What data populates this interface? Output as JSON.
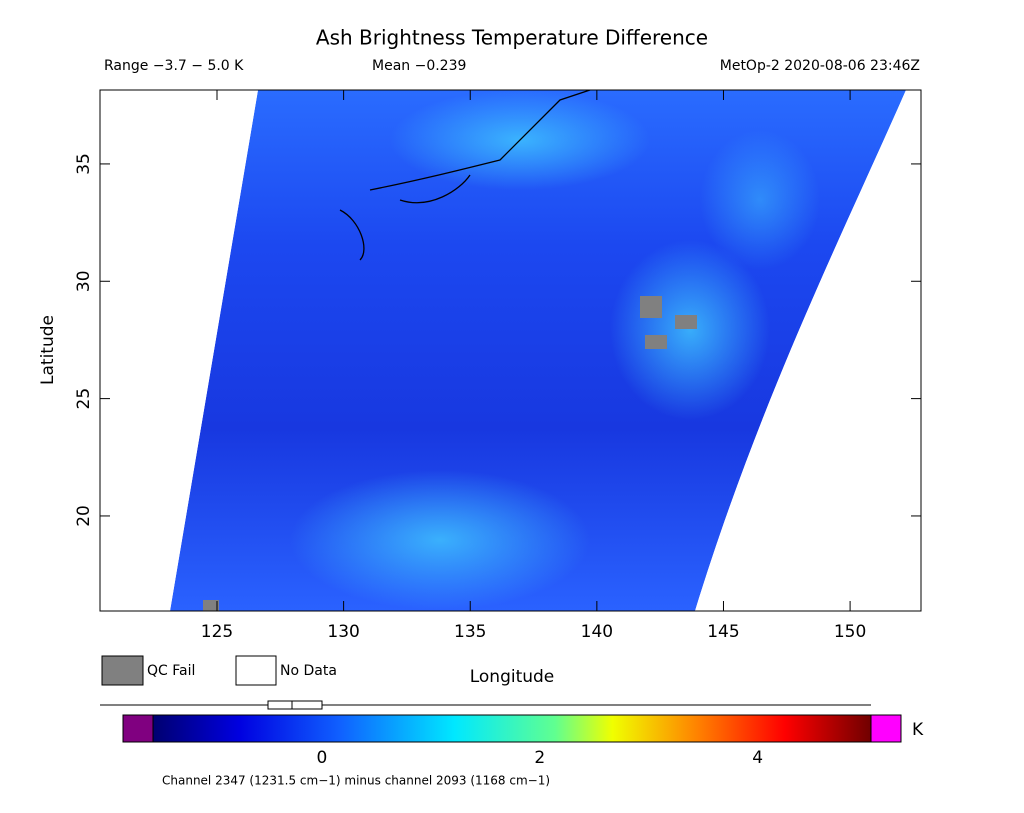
{
  "header": {
    "title": "Ash Brightness Temperature Difference",
    "range": "Range −3.7 − 5.0 K",
    "mean": "Mean −0.239",
    "source": "MetOp-2 2020-08-06 23:46Z"
  },
  "map": {
    "xlabel": "Longitude",
    "ylabel": "Latitude",
    "xlim": [
      120.38,
      152.8
    ],
    "ylim": [
      15.95,
      38.15
    ],
    "xticks": [
      125,
      130,
      135,
      140,
      145,
      150
    ],
    "yticks": [
      20,
      25,
      30,
      35
    ]
  },
  "legend": {
    "items": [
      "QC Fail",
      "No Data"
    ]
  },
  "colorbar": {
    "lim": [
      -1.55,
      5.04
    ],
    "ticks": [
      0,
      2,
      4
    ],
    "unit": "K"
  },
  "footer": "Channel 2347 (1231.5 cm−1) minus channel 2093 (1168 cm−1)"
}
